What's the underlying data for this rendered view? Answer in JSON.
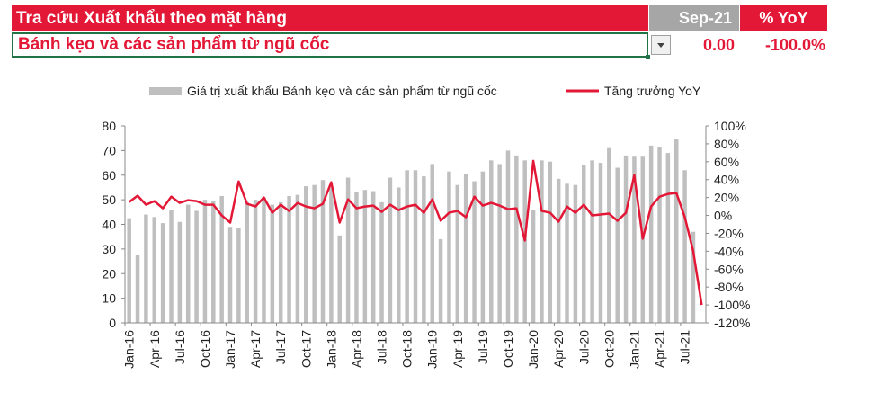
{
  "header": {
    "title": "Tra cứu Xuất khẩu theo mặt hàng",
    "period": "Sep-21",
    "yoy_label": "% YoY"
  },
  "selection": {
    "product": "Bánh kẹo và các sản phẩm từ ngũ cốc",
    "value": "0.00",
    "yoy": "-100.0%"
  },
  "colors": {
    "accent_red": "#e31837",
    "header_gray": "#a6a6a6",
    "bar_gray": "#bfbfbf",
    "line_red": "#e31837"
  },
  "chart_data": {
    "type": "bar",
    "title": "",
    "legend_position": "top",
    "grid": false,
    "x_tick_labels": [
      "Jan-16",
      "Apr-16",
      "Jul-16",
      "Oct-16",
      "Jan-17",
      "Apr-17",
      "Jul-17",
      "Oct-17",
      "Jan-18",
      "Apr-18",
      "Jul-18",
      "Oct-18",
      "Jan-19",
      "Apr-19",
      "Jul-19",
      "Oct-19",
      "Jan-20",
      "Apr-20",
      "Jul-20",
      "Oct-20",
      "Jan-21",
      "Apr-21",
      "Jul-21"
    ],
    "categories": [
      "Jan-16",
      "Feb-16",
      "Mar-16",
      "Apr-16",
      "May-16",
      "Jun-16",
      "Jul-16",
      "Aug-16",
      "Sep-16",
      "Oct-16",
      "Nov-16",
      "Dec-16",
      "Jan-17",
      "Feb-17",
      "Mar-17",
      "Apr-17",
      "May-17",
      "Jun-17",
      "Jul-17",
      "Aug-17",
      "Sep-17",
      "Oct-17",
      "Nov-17",
      "Dec-17",
      "Jan-18",
      "Feb-18",
      "Mar-18",
      "Apr-18",
      "May-18",
      "Jun-18",
      "Jul-18",
      "Aug-18",
      "Sep-18",
      "Oct-18",
      "Nov-18",
      "Dec-18",
      "Jan-19",
      "Feb-19",
      "Mar-19",
      "Apr-19",
      "May-19",
      "Jun-19",
      "Jul-19",
      "Aug-19",
      "Sep-19",
      "Oct-19",
      "Nov-19",
      "Dec-19",
      "Jan-20",
      "Feb-20",
      "Mar-20",
      "Apr-20",
      "May-20",
      "Jun-20",
      "Jul-20",
      "Aug-20",
      "Sep-20",
      "Oct-20",
      "Nov-20",
      "Dec-20",
      "Jan-21",
      "Feb-21",
      "Mar-21",
      "Apr-21",
      "May-21",
      "Jun-21",
      "Jul-21",
      "Aug-21",
      "Sep-21"
    ],
    "y_left": {
      "min": 0,
      "max": 80,
      "step": 10,
      "ticks": [
        "0",
        "10",
        "20",
        "30",
        "40",
        "50",
        "60",
        "70",
        "80"
      ]
    },
    "y_right": {
      "min": -120,
      "max": 100,
      "step": 20,
      "ticks": [
        "-120%",
        "-100%",
        "-80%",
        "-60%",
        "-40%",
        "-20%",
        "0%",
        "20%",
        "40%",
        "60%",
        "80%",
        "100%"
      ]
    },
    "series": [
      {
        "name": "Giá trị xuất khẩu Bánh kẹo và các sản phẩm từ ngũ cốc",
        "type": "bar",
        "axis": "left",
        "values": [
          42.5,
          27.5,
          44,
          43,
          40.5,
          46,
          41,
          48,
          45.5,
          50,
          49.5,
          51.5,
          39,
          38.5,
          49,
          50,
          51,
          48,
          49,
          51.5,
          52,
          55.5,
          56,
          58,
          55,
          35.5,
          59,
          53,
          54,
          53.5,
          49,
          59,
          55,
          62,
          62,
          59.5,
          64.5,
          34,
          61.5,
          56,
          60.5,
          57.5,
          61.5,
          66,
          64.5,
          70,
          68,
          66,
          46,
          66,
          65.5,
          58.5,
          56.5,
          56,
          64,
          66,
          65,
          71,
          63,
          68,
          67.5,
          67.5,
          72,
          71.5,
          69,
          74.5,
          62,
          37,
          0
        ]
      },
      {
        "name": "Tăng trưởng YoY",
        "type": "line",
        "axis": "right",
        "values": [
          15,
          22,
          12,
          16,
          8,
          21,
          14,
          17,
          16,
          12,
          12,
          0,
          -8,
          38,
          13,
          10,
          20,
          3,
          12,
          5,
          14,
          10,
          8,
          13,
          37,
          -8,
          18,
          8,
          10,
          11,
          4,
          12,
          6,
          10,
          12,
          3,
          18,
          -6,
          3,
          5,
          -2,
          21,
          11,
          14,
          11,
          7,
          8,
          -28,
          61,
          5,
          3,
          -7,
          10,
          3,
          12,
          0,
          1,
          2,
          -6,
          3,
          45,
          -26,
          10,
          21,
          24,
          25,
          -2,
          -40,
          -100
        ]
      }
    ]
  }
}
